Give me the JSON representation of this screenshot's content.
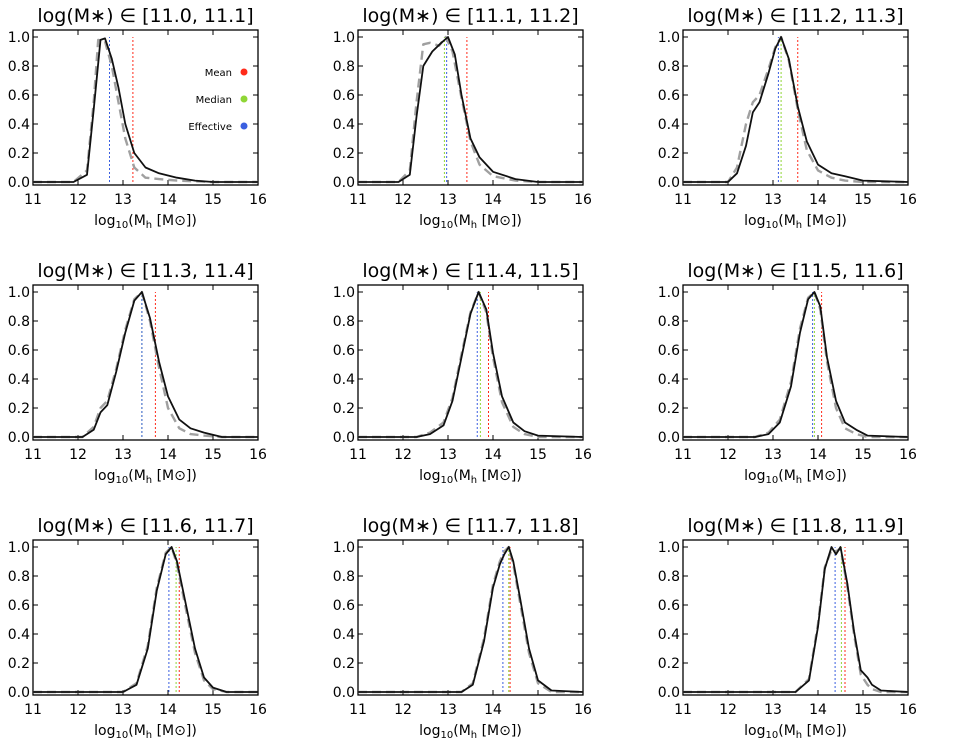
{
  "figure": {
    "xlabel": "log10(Mh [M⊙])",
    "xlabel_parts": {
      "pre": "log",
      "sub": "10",
      "mid": "(M",
      "sub2": "h",
      "post": " [M",
      "sym": "⊙",
      "end": "])"
    },
    "legend": [
      {
        "label": "Mean",
        "color": "#ff2a1a"
      },
      {
        "label": "Median",
        "color": "#8fd636"
      },
      {
        "label": "Effective",
        "color": "#3a5fe0"
      }
    ],
    "colors": {
      "solid": "#111111",
      "dashed": "#a0a0a0"
    }
  },
  "chart_data": [
    {
      "type": "line",
      "title": "log(M∗) ∈ [11.0, 11.1]",
      "xlim": [
        11,
        16
      ],
      "ylim": [
        0,
        1.05
      ],
      "xticks": [
        11,
        12,
        13,
        14,
        15,
        16
      ],
      "yticks": [
        "0.0",
        "0.2",
        "0.4",
        "0.6",
        "0.8",
        "1.0"
      ],
      "mean": 13.22,
      "median": 12.7,
      "effective": 12.7,
      "shoulder": false,
      "legend": true,
      "solid": [
        [
          11.9,
          0
        ],
        [
          12.2,
          0.05
        ],
        [
          12.35,
          0.5
        ],
        [
          12.5,
          0.98
        ],
        [
          12.6,
          0.99
        ],
        [
          12.75,
          0.85
        ],
        [
          12.9,
          0.65
        ],
        [
          13.05,
          0.4
        ],
        [
          13.25,
          0.2
        ],
        [
          13.5,
          0.1
        ],
        [
          13.8,
          0.06
        ],
        [
          14.2,
          0.03
        ],
        [
          14.6,
          0.01
        ],
        [
          15.0,
          0
        ]
      ],
      "dashed": [
        [
          11.9,
          0
        ],
        [
          12.2,
          0.08
        ],
        [
          12.35,
          0.55
        ],
        [
          12.45,
          0.98
        ],
        [
          12.6,
          0.97
        ],
        [
          12.75,
          0.8
        ],
        [
          12.9,
          0.55
        ],
        [
          13.05,
          0.3
        ],
        [
          13.25,
          0.1
        ],
        [
          13.5,
          0.03
        ],
        [
          13.8,
          0.02
        ],
        [
          14.2,
          0.01
        ],
        [
          15.0,
          0
        ]
      ]
    },
    {
      "type": "line",
      "title": "log(M∗) ∈ [11.1, 11.2]",
      "xlim": [
        11,
        16
      ],
      "ylim": [
        0,
        1.05
      ],
      "xticks": [
        11,
        12,
        13,
        14,
        15,
        16
      ],
      "yticks": [
        "0.0",
        "0.2",
        "0.4",
        "0.6",
        "0.8",
        "1.0"
      ],
      "mean": 13.42,
      "median": 12.92,
      "effective": 12.97,
      "shoulder": false,
      "legend": false,
      "solid": [
        [
          11.9,
          0
        ],
        [
          12.15,
          0.05
        ],
        [
          12.3,
          0.45
        ],
        [
          12.45,
          0.8
        ],
        [
          12.65,
          0.9
        ],
        [
          12.85,
          0.96
        ],
        [
          13.0,
          1.0
        ],
        [
          13.15,
          0.88
        ],
        [
          13.3,
          0.6
        ],
        [
          13.5,
          0.3
        ],
        [
          13.7,
          0.17
        ],
        [
          14.0,
          0.07
        ],
        [
          14.5,
          0.02
        ],
        [
          15.0,
          0
        ]
      ],
      "dashed": [
        [
          11.9,
          0
        ],
        [
          12.15,
          0.08
        ],
        [
          12.3,
          0.55
        ],
        [
          12.45,
          0.95
        ],
        [
          12.6,
          0.96
        ],
        [
          12.8,
          0.94
        ],
        [
          12.95,
          1.0
        ],
        [
          13.1,
          0.9
        ],
        [
          13.3,
          0.58
        ],
        [
          13.5,
          0.28
        ],
        [
          13.7,
          0.12
        ],
        [
          14.0,
          0.04
        ],
        [
          14.5,
          0.01
        ],
        [
          15.0,
          0
        ]
      ]
    },
    {
      "type": "line",
      "title": "log(M∗) ∈ [11.2, 11.3]",
      "xlim": [
        11,
        16
      ],
      "ylim": [
        0,
        1.05
      ],
      "xticks": [
        11,
        12,
        13,
        14,
        15,
        16
      ],
      "yticks": [
        "0.0",
        "0.2",
        "0.4",
        "0.6",
        "0.8",
        "1.0"
      ],
      "mean": 13.55,
      "median": 13.18,
      "effective": 13.12,
      "shoulder": true,
      "legend": false,
      "solid": [
        [
          12.0,
          0
        ],
        [
          12.2,
          0.06
        ],
        [
          12.4,
          0.25
        ],
        [
          12.55,
          0.48
        ],
        [
          12.7,
          0.55
        ],
        [
          12.9,
          0.75
        ],
        [
          13.05,
          0.92
        ],
        [
          13.18,
          1.0
        ],
        [
          13.35,
          0.85
        ],
        [
          13.55,
          0.52
        ],
        [
          13.75,
          0.28
        ],
        [
          14.0,
          0.12
        ],
        [
          14.3,
          0.06
        ],
        [
          14.6,
          0.04
        ],
        [
          15.0,
          0.01
        ]
      ],
      "dashed": [
        [
          12.0,
          0
        ],
        [
          12.2,
          0.1
        ],
        [
          12.4,
          0.4
        ],
        [
          12.55,
          0.55
        ],
        [
          12.7,
          0.6
        ],
        [
          12.9,
          0.78
        ],
        [
          13.05,
          0.93
        ],
        [
          13.18,
          1.0
        ],
        [
          13.35,
          0.84
        ],
        [
          13.55,
          0.5
        ],
        [
          13.75,
          0.22
        ],
        [
          14.0,
          0.08
        ],
        [
          14.3,
          0.03
        ],
        [
          14.6,
          0.01
        ],
        [
          15.0,
          0
        ]
      ]
    },
    {
      "type": "line",
      "title": "log(M∗) ∈ [11.3, 11.4]",
      "xlim": [
        11,
        16
      ],
      "ylim": [
        0,
        1.05
      ],
      "xticks": [
        11,
        12,
        13,
        14,
        15,
        16
      ],
      "yticks": [
        "0.0",
        "0.2",
        "0.4",
        "0.6",
        "0.8",
        "1.0"
      ],
      "mean": 13.72,
      "median": 13.42,
      "effective": 13.42,
      "shoulder": true,
      "legend": false,
      "solid": [
        [
          12.1,
          0
        ],
        [
          12.35,
          0.05
        ],
        [
          12.5,
          0.17
        ],
        [
          12.65,
          0.22
        ],
        [
          12.85,
          0.45
        ],
        [
          13.05,
          0.72
        ],
        [
          13.25,
          0.94
        ],
        [
          13.42,
          1.0
        ],
        [
          13.6,
          0.82
        ],
        [
          13.8,
          0.52
        ],
        [
          14.0,
          0.28
        ],
        [
          14.25,
          0.12
        ],
        [
          14.5,
          0.06
        ],
        [
          14.8,
          0.03
        ],
        [
          15.2,
          0
        ]
      ],
      "dashed": [
        [
          12.1,
          0
        ],
        [
          12.35,
          0.07
        ],
        [
          12.5,
          0.2
        ],
        [
          12.65,
          0.25
        ],
        [
          12.85,
          0.47
        ],
        [
          13.05,
          0.74
        ],
        [
          13.25,
          0.95
        ],
        [
          13.42,
          1.0
        ],
        [
          13.6,
          0.8
        ],
        [
          13.8,
          0.48
        ],
        [
          14.0,
          0.2
        ],
        [
          14.25,
          0.06
        ],
        [
          14.5,
          0.02
        ],
        [
          14.8,
          0.01
        ],
        [
          15.2,
          0
        ]
      ]
    },
    {
      "type": "line",
      "title": "log(M∗) ∈ [11.4, 11.5]",
      "xlim": [
        11,
        16
      ],
      "ylim": [
        0,
        1.05
      ],
      "xticks": [
        11,
        12,
        13,
        14,
        15,
        16
      ],
      "yticks": [
        "0.0",
        "0.2",
        "0.4",
        "0.6",
        "0.8",
        "1.0"
      ],
      "mean": 13.9,
      "median": 13.72,
      "effective": 13.65,
      "shoulder": false,
      "legend": false,
      "solid": [
        [
          12.3,
          0
        ],
        [
          12.6,
          0.02
        ],
        [
          12.9,
          0.08
        ],
        [
          13.1,
          0.25
        ],
        [
          13.3,
          0.55
        ],
        [
          13.5,
          0.85
        ],
        [
          13.68,
          1.0
        ],
        [
          13.85,
          0.88
        ],
        [
          14.0,
          0.58
        ],
        [
          14.2,
          0.28
        ],
        [
          14.45,
          0.1
        ],
        [
          14.7,
          0.04
        ],
        [
          15.0,
          0.01
        ]
      ],
      "dashed": [
        [
          12.3,
          0
        ],
        [
          12.6,
          0.03
        ],
        [
          12.9,
          0.1
        ],
        [
          13.1,
          0.27
        ],
        [
          13.3,
          0.57
        ],
        [
          13.5,
          0.86
        ],
        [
          13.68,
          1.0
        ],
        [
          13.85,
          0.86
        ],
        [
          14.0,
          0.55
        ],
        [
          14.2,
          0.24
        ],
        [
          14.45,
          0.07
        ],
        [
          14.7,
          0.02
        ],
        [
          15.0,
          0
        ]
      ]
    },
    {
      "type": "line",
      "title": "log(M∗) ∈ [11.5, 11.6]",
      "xlim": [
        11,
        16
      ],
      "ylim": [
        0,
        1.05
      ],
      "xticks": [
        11,
        12,
        13,
        14,
        15,
        16
      ],
      "yticks": [
        "0.0",
        "0.2",
        "0.4",
        "0.6",
        "0.8",
        "1.0"
      ],
      "mean": 14.08,
      "median": 13.92,
      "effective": 13.88,
      "shoulder": false,
      "legend": false,
      "solid": [
        [
          12.6,
          0
        ],
        [
          12.9,
          0.02
        ],
        [
          13.15,
          0.1
        ],
        [
          13.4,
          0.35
        ],
        [
          13.6,
          0.72
        ],
        [
          13.78,
          0.95
        ],
        [
          13.92,
          1.0
        ],
        [
          14.05,
          0.9
        ],
        [
          14.2,
          0.55
        ],
        [
          14.4,
          0.25
        ],
        [
          14.6,
          0.1
        ],
        [
          14.85,
          0.05
        ],
        [
          15.1,
          0.01
        ]
      ],
      "dashed": [
        [
          12.6,
          0
        ],
        [
          12.9,
          0.03
        ],
        [
          13.15,
          0.12
        ],
        [
          13.4,
          0.38
        ],
        [
          13.6,
          0.75
        ],
        [
          13.78,
          0.96
        ],
        [
          13.92,
          1.0
        ],
        [
          14.05,
          0.88
        ],
        [
          14.2,
          0.52
        ],
        [
          14.4,
          0.2
        ],
        [
          14.6,
          0.06
        ],
        [
          14.85,
          0.02
        ],
        [
          15.1,
          0
        ]
      ]
    },
    {
      "type": "line",
      "title": "log(M∗) ∈ [11.6, 11.7]",
      "xlim": [
        11,
        16
      ],
      "ylim": [
        0,
        1.05
      ],
      "xticks": [
        11,
        12,
        13,
        14,
        15,
        16
      ],
      "yticks": [
        "0.0",
        "0.2",
        "0.4",
        "0.6",
        "0.8",
        "1.0"
      ],
      "mean": 14.25,
      "median": 14.18,
      "effective": 14.02,
      "shoulder": false,
      "legend": false,
      "solid": [
        [
          13.0,
          0
        ],
        [
          13.3,
          0.05
        ],
        [
          13.55,
          0.3
        ],
        [
          13.75,
          0.7
        ],
        [
          13.95,
          0.95
        ],
        [
          14.08,
          1.0
        ],
        [
          14.2,
          0.9
        ],
        [
          14.4,
          0.6
        ],
        [
          14.6,
          0.3
        ],
        [
          14.8,
          0.1
        ],
        [
          15.0,
          0.03
        ],
        [
          15.3,
          0
        ]
      ],
      "dashed": [
        [
          13.0,
          0
        ],
        [
          13.3,
          0.06
        ],
        [
          13.55,
          0.32
        ],
        [
          13.75,
          0.72
        ],
        [
          13.95,
          0.96
        ],
        [
          14.08,
          1.0
        ],
        [
          14.2,
          0.88
        ],
        [
          14.4,
          0.57
        ],
        [
          14.6,
          0.27
        ],
        [
          14.8,
          0.08
        ],
        [
          15.0,
          0.02
        ],
        [
          15.3,
          0
        ]
      ]
    },
    {
      "type": "line",
      "title": "log(M∗) ∈ [11.7, 11.8]",
      "xlim": [
        11,
        16
      ],
      "ylim": [
        0,
        1.05
      ],
      "xticks": [
        11,
        12,
        13,
        14,
        15,
        16
      ],
      "yticks": [
        "0.0",
        "0.2",
        "0.4",
        "0.6",
        "0.8",
        "1.0"
      ],
      "mean": 14.38,
      "median": 14.35,
      "effective": 14.22,
      "shoulder": false,
      "legend": false,
      "solid": [
        [
          13.3,
          0
        ],
        [
          13.55,
          0.05
        ],
        [
          13.8,
          0.35
        ],
        [
          14.0,
          0.72
        ],
        [
          14.15,
          0.88
        ],
        [
          14.25,
          0.95
        ],
        [
          14.35,
          1.0
        ],
        [
          14.45,
          0.9
        ],
        [
          14.6,
          0.65
        ],
        [
          14.8,
          0.3
        ],
        [
          15.0,
          0.08
        ],
        [
          15.3,
          0.01
        ]
      ],
      "dashed": [
        [
          13.3,
          0
        ],
        [
          13.55,
          0.06
        ],
        [
          13.8,
          0.37
        ],
        [
          14.0,
          0.74
        ],
        [
          14.15,
          0.9
        ],
        [
          14.25,
          0.97
        ],
        [
          14.35,
          1.0
        ],
        [
          14.45,
          0.88
        ],
        [
          14.6,
          0.62
        ],
        [
          14.8,
          0.27
        ],
        [
          15.0,
          0.06
        ],
        [
          15.3,
          0
        ]
      ]
    },
    {
      "type": "line",
      "title": "log(M∗) ∈ [11.8, 11.9]",
      "xlim": [
        11,
        16
      ],
      "ylim": [
        0,
        1.05
      ],
      "xticks": [
        11,
        12,
        13,
        14,
        15,
        16
      ],
      "yticks": [
        "0.0",
        "0.2",
        "0.4",
        "0.6",
        "0.8",
        "1.0"
      ],
      "mean": 14.6,
      "median": 14.52,
      "effective": 14.38,
      "shoulder": false,
      "legend": false,
      "solid": [
        [
          13.5,
          0
        ],
        [
          13.8,
          0.08
        ],
        [
          14.0,
          0.45
        ],
        [
          14.15,
          0.85
        ],
        [
          14.3,
          1.0
        ],
        [
          14.4,
          0.95
        ],
        [
          14.5,
          1.0
        ],
        [
          14.65,
          0.75
        ],
        [
          14.8,
          0.42
        ],
        [
          14.95,
          0.15
        ],
        [
          15.1,
          0.1
        ],
        [
          15.2,
          0.05
        ],
        [
          15.4,
          0.01
        ]
      ],
      "dashed": [
        [
          13.5,
          0
        ],
        [
          13.8,
          0.09
        ],
        [
          14.0,
          0.47
        ],
        [
          14.15,
          0.86
        ],
        [
          14.3,
          0.98
        ],
        [
          14.4,
          0.97
        ],
        [
          14.5,
          0.99
        ],
        [
          14.65,
          0.73
        ],
        [
          14.8,
          0.4
        ],
        [
          14.95,
          0.12
        ],
        [
          15.1,
          0.05
        ],
        [
          15.2,
          0.02
        ],
        [
          15.4,
          0
        ]
      ]
    }
  ]
}
